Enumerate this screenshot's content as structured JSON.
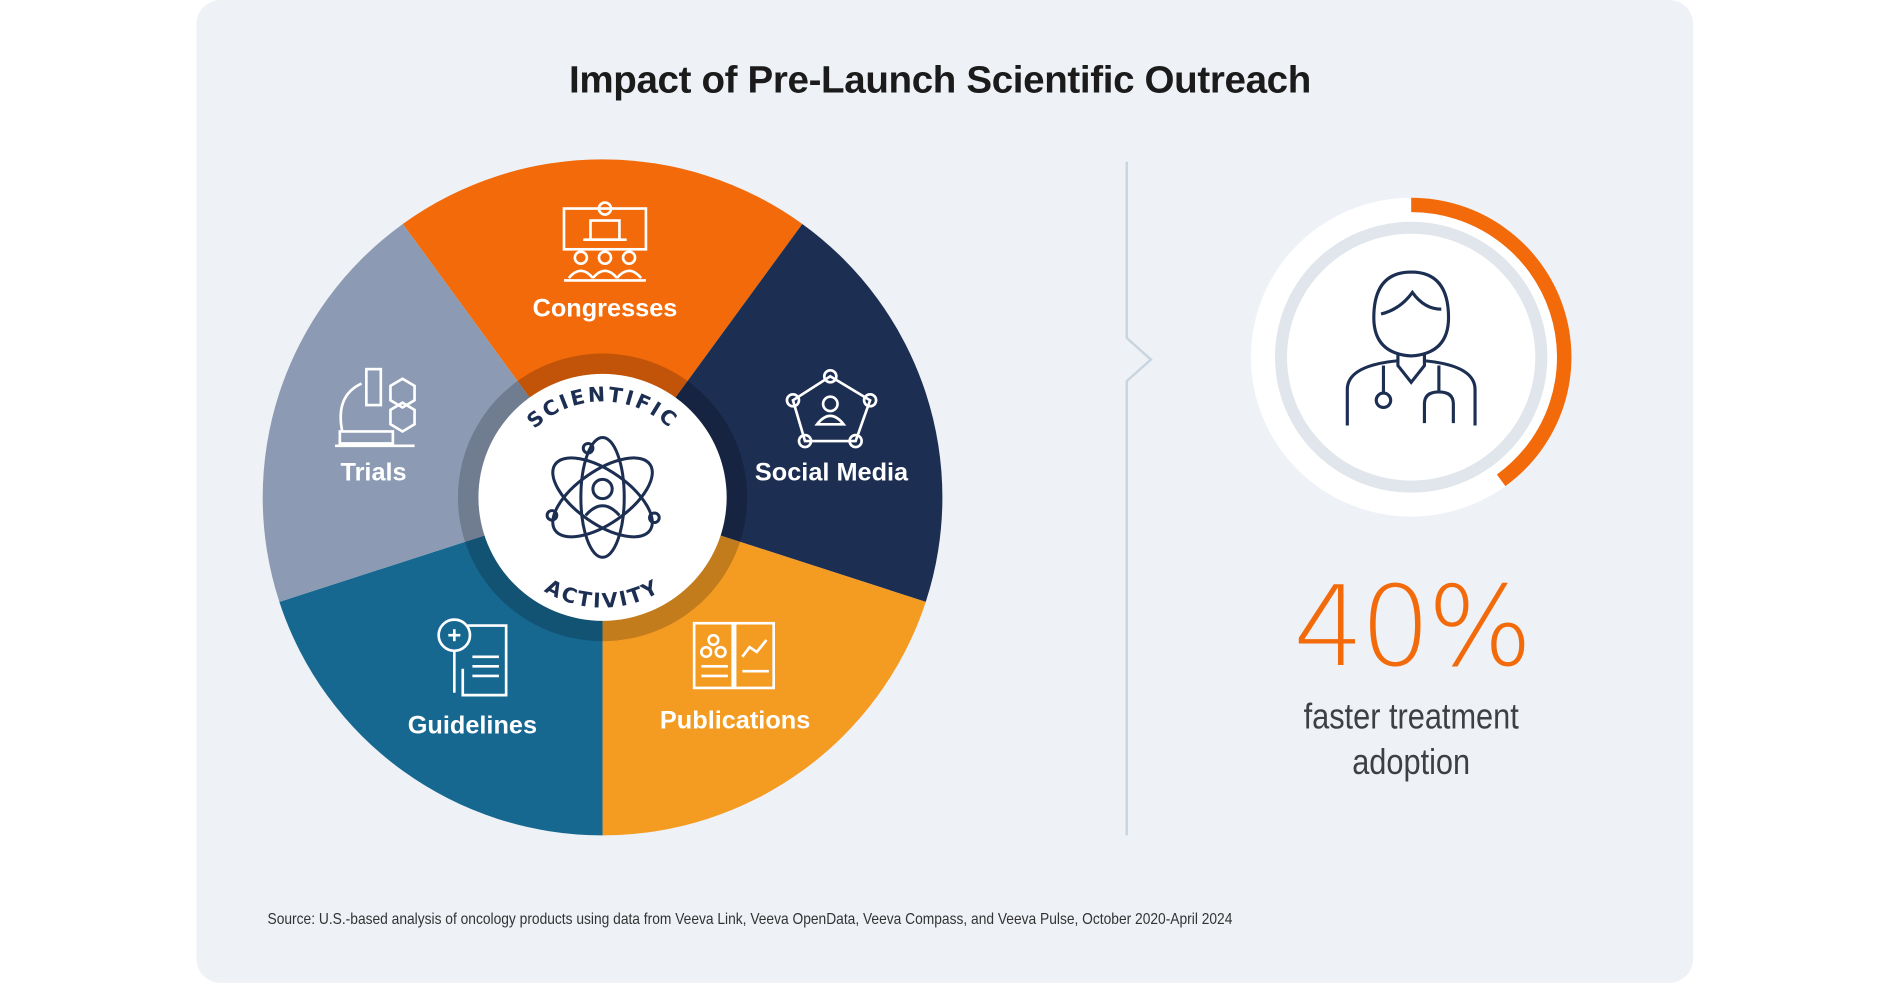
{
  "title": "Impact of Pre-Launch Scientific Outreach",
  "wheel": {
    "center_top": "SCIENTIFIC",
    "center_bottom": "ACTIVITY",
    "segments": [
      {
        "label": "Congresses",
        "color": "#f26a0a",
        "icon": "presentation-audience-icon"
      },
      {
        "label": "Social Media",
        "color": "#1c2e52",
        "icon": "network-user-icon"
      },
      {
        "label": "Publications",
        "color": "#f49b22",
        "icon": "open-book-chart-icon"
      },
      {
        "label": "Guidelines",
        "color": "#176891",
        "icon": "document-magnifier-icon"
      },
      {
        "label": "Trials",
        "color": "#8c9bb3",
        "icon": "microscope-icon"
      }
    ]
  },
  "stat": {
    "value": "40%",
    "progress_fraction": 0.4,
    "accent": "#f26a0a",
    "caption_line1": "faster treatment",
    "caption_line2": "adoption",
    "icon": "doctor-icon"
  },
  "source": "Source: U.S.-based analysis of oncology products using data from Veeva Link, Veeva OpenData, Veeva Compass, and Veeva Pulse, October 2020-April 2024"
}
